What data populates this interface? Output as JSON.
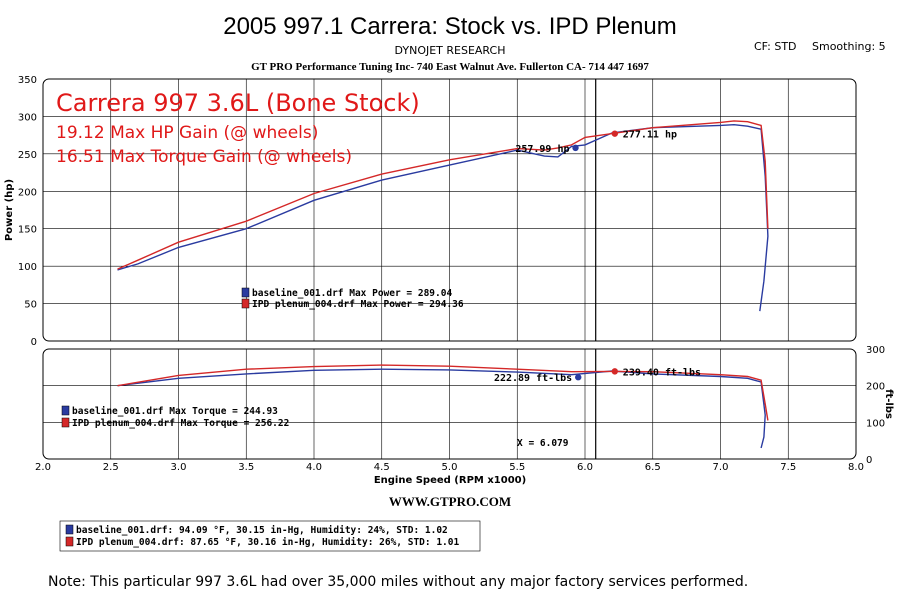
{
  "header": {
    "title": "2005 997.1 Carrera: Stock vs. IPD Plenum",
    "subtitle": "DYNOJET RESEARCH",
    "shop": "GT PRO Performance Tuning Inc- 740 East Walnut Ave. Fullerton CA- 714 447 1697",
    "cf": "CF: STD",
    "smoothing": "Smoothing: 5"
  },
  "annotations": {
    "car": "Carrera 997 3.6L (Bone Stock)",
    "hp_gain": "19.12 Max HP Gain (@ wheels)",
    "tq_gain": "16.51 Max Torque Gain (@ wheels)",
    "website": "WWW.GTPRO.COM",
    "note": "Note: This particular 997 3.6L had over 35,000 miles without any major factory services performed.",
    "cursor_x": "X = 6.079"
  },
  "colors": {
    "baseline": "#2a3ba0",
    "ipd": "#d42828",
    "annotation": "#e01818",
    "grid": "#000000"
  },
  "chart_data": [
    {
      "type": "line",
      "name": "power",
      "ylabel": "Power (hp)",
      "xlabel": "Engine Speed (RPM x1000)",
      "xlim": [
        2.0,
        8.0
      ],
      "ylim": [
        0,
        350
      ],
      "x_ticks": [
        "2.0",
        "2.5",
        "3.0",
        "3.5",
        "4.0",
        "4.5",
        "5.0",
        "5.5",
        "6.0",
        "6.5",
        "7.0",
        "7.5",
        "8.0"
      ],
      "y_ticks": [
        "0",
        "50",
        "100",
        "150",
        "200",
        "250",
        "300",
        "350"
      ],
      "cursor_x": 6.079,
      "series": [
        {
          "name": "baseline_001.drf",
          "x": [
            2.55,
            2.7,
            3.0,
            3.5,
            4.0,
            4.5,
            5.0,
            5.5,
            5.7,
            5.8,
            5.9,
            6.0,
            6.2,
            6.5,
            7.0,
            7.1,
            7.2,
            7.3,
            7.33,
            7.35,
            7.32,
            7.29
          ],
          "values": [
            95,
            103,
            125,
            150,
            188,
            215,
            235,
            255,
            247,
            246,
            260,
            262,
            278,
            285,
            288,
            289,
            287,
            283,
            220,
            140,
            80,
            40
          ]
        },
        {
          "name": "IPD plenum_004.drf",
          "x": [
            2.55,
            2.7,
            3.0,
            3.5,
            4.0,
            4.5,
            5.0,
            5.5,
            5.7,
            5.8,
            5.9,
            6.0,
            6.2,
            6.5,
            7.0,
            7.1,
            7.2,
            7.3,
            7.33,
            7.35
          ],
          "values": [
            96,
            108,
            132,
            160,
            197,
            223,
            242,
            257,
            255,
            258,
            262,
            272,
            277,
            285,
            292,
            294,
            293,
            288,
            240,
            150
          ]
        }
      ],
      "labels": [
        {
          "text": "257.99 hp",
          "x": 5.93,
          "y": 258,
          "series": "baseline_001.drf"
        },
        {
          "text": "277.11 hp",
          "x": 6.22,
          "y": 277,
          "series": "IPD plenum_004.drf"
        }
      ],
      "legend": [
        "baseline_001.drf Max Power = 289.04",
        "IPD plenum_004.drf Max Power = 294.36"
      ]
    },
    {
      "type": "line",
      "name": "torque",
      "ylabel": "ft-lbs",
      "xlim": [
        2.0,
        8.0
      ],
      "ylim": [
        0,
        300
      ],
      "y_ticks": [
        "0",
        "100",
        "200",
        "300"
      ],
      "cursor_x": 6.079,
      "series": [
        {
          "name": "baseline_001.drf",
          "x": [
            2.55,
            3.0,
            3.5,
            4.0,
            4.5,
            5.0,
            5.5,
            5.9,
            6.2,
            6.5,
            7.0,
            7.2,
            7.3,
            7.33,
            7.32,
            7.3
          ],
          "values": [
            200,
            220,
            232,
            242,
            245,
            243,
            237,
            230,
            240,
            232,
            225,
            220,
            210,
            120,
            60,
            30
          ]
        },
        {
          "name": "IPD plenum_004.drf",
          "x": [
            2.55,
            3.0,
            3.5,
            4.0,
            4.5,
            5.0,
            5.5,
            5.9,
            6.2,
            6.5,
            7.0,
            7.2,
            7.3,
            7.33,
            7.35
          ],
          "values": [
            200,
            228,
            245,
            252,
            256,
            253,
            245,
            238,
            239,
            238,
            230,
            225,
            215,
            150,
            105
          ]
        }
      ],
      "labels": [
        {
          "text": "222.89 ft-lbs",
          "x": 5.95,
          "y": 223,
          "series": "baseline_001.drf"
        },
        {
          "text": "239.40 ft-lbs",
          "x": 6.22,
          "y": 239,
          "series": "IPD plenum_004.drf"
        }
      ],
      "legend": [
        "baseline_001.drf Max Torque = 244.93",
        "IPD plenum_004.drf Max Torque = 256.22"
      ]
    }
  ],
  "footer_legend": [
    "baseline_001.drf: 94.09 °F, 30.15 in-Hg, Humidity: 24%, STD: 1.02",
    "IPD plenum_004.drf: 87.65 °F, 30.16 in-Hg, Humidity: 26%, STD: 1.01"
  ]
}
